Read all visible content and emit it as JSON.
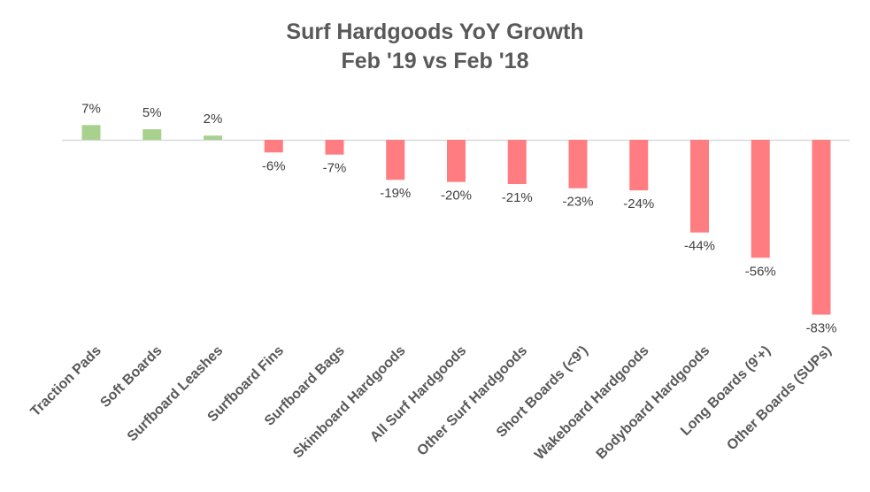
{
  "chart_data": {
    "type": "bar",
    "title": "Surf Hardgoods YoY Growth",
    "subtitle": "Feb '19 vs Feb '18",
    "categories": [
      "Traction Pads",
      "Soft Boards",
      "Surfboard Leashes",
      "Surfboard Fins",
      "Surfboard Bags",
      "Skimboard Hardgoods",
      "All Surf Hardgoods",
      "Other Surf Hardgoods",
      "Short Boards (<9')",
      "Wakeboard Hardgoods",
      "Bodyboard Hardgoods",
      "Long Boards (9'+)",
      "Other Boards (SUPs)"
    ],
    "values": [
      7,
      5,
      2,
      -6,
      -7,
      -19,
      -20,
      -21,
      -23,
      -24,
      -44,
      -56,
      -83
    ],
    "data_labels": [
      "7%",
      "5%",
      "2%",
      "-6%",
      "-7%",
      "-19%",
      "-20%",
      "-21%",
      "-23%",
      "-24%",
      "-44%",
      "-56%",
      "-83%"
    ],
    "unit": "%",
    "colors": {
      "positive": "#a9d18e",
      "negative": "#ff7c80",
      "axis": "#d9d9d9"
    },
    "grid": false,
    "legend": "none"
  }
}
